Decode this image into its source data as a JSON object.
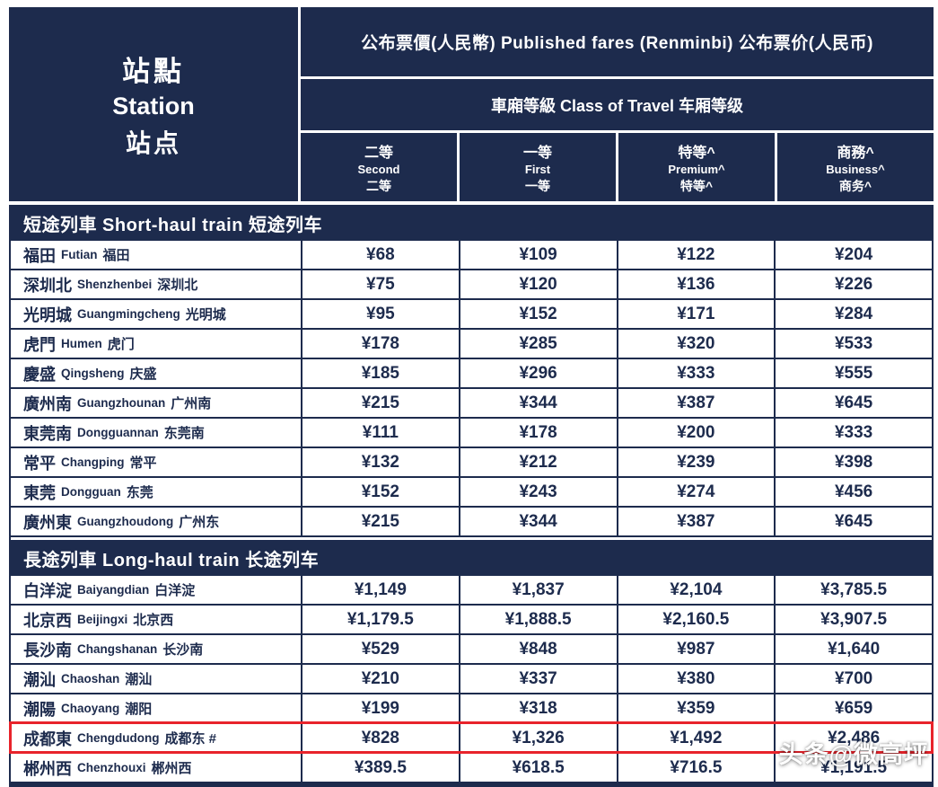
{
  "header": {
    "station": {
      "tc": "站點",
      "en": "Station",
      "sc": "站点"
    },
    "fares_title": "公布票價(人民幣) Published fares (Renminbi) 公布票价(人民币)",
    "class_title": "車廂等級 Class of Travel 车厢等级",
    "columns": [
      {
        "tc": "二等",
        "en": "Second",
        "sc": "二等"
      },
      {
        "tc": "一等",
        "en": "First",
        "sc": "一等"
      },
      {
        "tc": "特等^",
        "en": "Premium^",
        "sc": "特等^"
      },
      {
        "tc": "商務^",
        "en": "Business^",
        "sc": "商务^"
      }
    ]
  },
  "sections": [
    {
      "title": "短途列車 Short-haul train 短途列车",
      "rows": [
        {
          "tc": "福田",
          "en": "Futian",
          "sc": "福田",
          "fares": [
            "¥68",
            "¥109",
            "¥122",
            "¥204"
          ]
        },
        {
          "tc": "深圳北",
          "en": "Shenzhenbei",
          "sc": "深圳北",
          "fares": [
            "¥75",
            "¥120",
            "¥136",
            "¥226"
          ]
        },
        {
          "tc": "光明城",
          "en": "Guangmingcheng",
          "sc": "光明城",
          "fares": [
            "¥95",
            "¥152",
            "¥171",
            "¥284"
          ]
        },
        {
          "tc": "虎門",
          "en": "Humen",
          "sc": "虎门",
          "fares": [
            "¥178",
            "¥285",
            "¥320",
            "¥533"
          ]
        },
        {
          "tc": "慶盛",
          "en": "Qingsheng",
          "sc": "庆盛",
          "fares": [
            "¥185",
            "¥296",
            "¥333",
            "¥555"
          ]
        },
        {
          "tc": "廣州南",
          "en": "Guangzhounan",
          "sc": "广州南",
          "fares": [
            "¥215",
            "¥344",
            "¥387",
            "¥645"
          ]
        },
        {
          "tc": "東莞南",
          "en": "Dongguannan",
          "sc": "东莞南",
          "fares": [
            "¥111",
            "¥178",
            "¥200",
            "¥333"
          ]
        },
        {
          "tc": "常平",
          "en": "Changping",
          "sc": "常平",
          "fares": [
            "¥132",
            "¥212",
            "¥239",
            "¥398"
          ]
        },
        {
          "tc": "東莞",
          "en": "Dongguan",
          "sc": "东莞",
          "fares": [
            "¥152",
            "¥243",
            "¥274",
            "¥456"
          ]
        },
        {
          "tc": "廣州東",
          "en": "Guangzhoudong",
          "sc": "广州东",
          "fares": [
            "¥215",
            "¥344",
            "¥387",
            "¥645"
          ]
        }
      ]
    },
    {
      "title": "長途列車 Long-haul train 长途列车",
      "rows": [
        {
          "tc": "白洋淀",
          "en": "Baiyangdian",
          "sc": "白洋淀",
          "fares": [
            "¥1,149",
            "¥1,837",
            "¥2,104",
            "¥3,785.5"
          ]
        },
        {
          "tc": "北京西",
          "en": "Beijingxi",
          "sc": "北京西",
          "fares": [
            "¥1,179.5",
            "¥1,888.5",
            "¥2,160.5",
            "¥3,907.5"
          ]
        },
        {
          "tc": "長沙南",
          "en": "Changshanan",
          "sc": "长沙南",
          "fares": [
            "¥529",
            "¥848",
            "¥987",
            "¥1,640"
          ]
        },
        {
          "tc": "潮汕",
          "en": "Chaoshan",
          "sc": "潮汕",
          "fares": [
            "¥210",
            "¥337",
            "¥380",
            "¥700"
          ]
        },
        {
          "tc": "潮陽",
          "en": "Chaoyang",
          "sc": "潮阳",
          "fares": [
            "¥199",
            "¥318",
            "¥359",
            "¥659"
          ]
        },
        {
          "tc": "成都東",
          "en": "Chengdudong",
          "sc": "成都东",
          "suffix": "#",
          "highlight": true,
          "fares": [
            "¥828",
            "¥1,326",
            "¥1,492",
            "¥2,486"
          ]
        },
        {
          "tc": "郴州西",
          "en": "Chenzhouxi",
          "sc": "郴州西",
          "fares": [
            "¥389.5",
            "¥618.5",
            "¥716.5",
            "¥1,191.5"
          ]
        }
      ]
    }
  ],
  "watermark": {
    "text": "头条@微高坪"
  },
  "colors": {
    "navy": "#1d2b4d",
    "highlight_red": "#e8232b",
    "text": "#1d2b4d",
    "header_text": "#ffffff"
  }
}
